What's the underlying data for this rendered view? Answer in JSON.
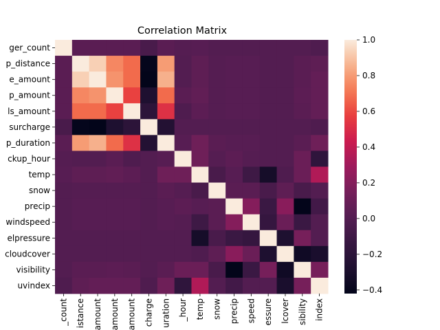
{
  "chart_data": {
    "type": "heatmap",
    "title": "Correlation Matrix",
    "labels": {
      "y": [
        "passenger_count",
        "trip_distance",
        "fare_amount",
        "tip_amount",
        "tolls_amount",
        "congestion_surcharge",
        "trip_duration",
        "pickup_hour",
        "temp",
        "snow",
        "precip",
        "windspeed",
        "sealevelpressure",
        "cloudcover",
        "visibility",
        "uvindex"
      ],
      "x": [
        "passenger_count",
        "trip_distance",
        "fare_amount",
        "tip_amount",
        "tolls_amount",
        "congestion_surcharge",
        "trip_duration",
        "pickup_hour",
        "temp",
        "snow",
        "precip",
        "windspeed",
        "sealevelpressure",
        "cloudcover",
        "visibility",
        "uvindex"
      ]
    },
    "y_tick_labels_shown": [
      "ger_count",
      "p_distance",
      "e_amount",
      "p_amount",
      "ls_amount",
      "surcharge",
      "p_duration",
      "ckup_hour",
      "temp",
      "snow",
      "precip",
      "windspeed",
      "elpressure",
      "cloudcover",
      "visibility",
      "uvindex"
    ],
    "x_tick_labels_shown": [
      "_count",
      "istance",
      "amount",
      "amount",
      "amount",
      "charge",
      "uration",
      "_hour",
      "temp",
      "snow",
      "precip",
      "speed",
      "essure",
      "lcover",
      "sibility",
      "index"
    ],
    "matrix": [
      [
        1.0,
        0.03,
        0.03,
        0.03,
        0.03,
        -0.05,
        0.03,
        0.01,
        0.02,
        0.0,
        0.0,
        0.0,
        0.0,
        0.0,
        0.0,
        -0.02
      ],
      [
        0.03,
        1.0,
        0.93,
        0.75,
        0.68,
        -0.41,
        0.8,
        0.0,
        0.05,
        0.01,
        0.02,
        0.02,
        0.0,
        0.0,
        0.03,
        0.05
      ],
      [
        0.03,
        0.93,
        1.0,
        0.78,
        0.68,
        -0.42,
        0.85,
        0.0,
        0.05,
        0.01,
        0.02,
        0.02,
        0.0,
        0.0,
        0.03,
        0.07
      ],
      [
        0.03,
        0.75,
        0.78,
        1.0,
        0.58,
        -0.28,
        0.68,
        0.03,
        0.06,
        0.01,
        0.02,
        0.02,
        0.0,
        0.0,
        0.04,
        0.07
      ],
      [
        0.03,
        0.68,
        0.68,
        0.58,
        1.0,
        -0.2,
        0.52,
        -0.02,
        0.04,
        0.01,
        0.02,
        0.02,
        0.0,
        0.0,
        0.03,
        0.07
      ],
      [
        -0.05,
        -0.41,
        -0.42,
        -0.28,
        -0.2,
        1.0,
        -0.25,
        0.0,
        0.0,
        0.0,
        0.0,
        0.0,
        0.0,
        0.0,
        0.0,
        -0.02
      ],
      [
        0.03,
        0.8,
        0.85,
        0.68,
        0.52,
        -0.25,
        1.0,
        0.02,
        0.12,
        0.03,
        0.02,
        0.02,
        0.0,
        0.0,
        0.03,
        0.12
      ],
      [
        0.01,
        0.0,
        0.0,
        0.03,
        -0.02,
        0.0,
        0.02,
        1.0,
        0.12,
        0.01,
        0.04,
        0.01,
        0.0,
        0.0,
        0.1,
        -0.18
      ],
      [
        0.02,
        0.05,
        0.05,
        0.06,
        0.04,
        0.0,
        0.12,
        0.12,
        1.0,
        -0.05,
        0.02,
        -0.1,
        -0.32,
        -0.02,
        0.1,
        0.35
      ],
      [
        0.0,
        0.01,
        0.01,
        0.01,
        0.01,
        0.0,
        0.03,
        0.01,
        -0.05,
        1.0,
        0.03,
        0.03,
        -0.05,
        0.05,
        -0.05,
        0.0
      ],
      [
        0.0,
        0.02,
        0.02,
        0.02,
        0.02,
        0.0,
        0.02,
        0.04,
        0.02,
        0.03,
        1.0,
        0.2,
        -0.12,
        0.22,
        -0.42,
        -0.08
      ],
      [
        0.0,
        0.02,
        0.02,
        0.02,
        0.02,
        0.0,
        0.02,
        0.01,
        -0.1,
        0.03,
        0.2,
        1.0,
        -0.15,
        0.1,
        -0.12,
        0.0
      ],
      [
        0.0,
        0.0,
        0.0,
        0.0,
        0.0,
        0.0,
        0.0,
        0.0,
        -0.32,
        -0.05,
        -0.12,
        -0.15,
        1.0,
        -0.28,
        0.15,
        0.0
      ],
      [
        0.0,
        0.0,
        0.0,
        0.0,
        0.0,
        0.0,
        0.0,
        0.0,
        -0.02,
        0.05,
        0.22,
        0.1,
        -0.28,
        1.0,
        -0.35,
        -0.3
      ],
      [
        0.0,
        0.03,
        0.03,
        0.04,
        0.03,
        0.0,
        0.03,
        0.1,
        0.1,
        -0.05,
        -0.42,
        -0.12,
        0.15,
        -0.35,
        1.0,
        0.15
      ],
      [
        -0.02,
        0.05,
        0.07,
        0.07,
        0.07,
        -0.02,
        0.12,
        -0.18,
        0.35,
        0.0,
        -0.08,
        0.0,
        0.0,
        -0.3,
        0.15,
        1.0
      ]
    ],
    "colorbar": {
      "vmin": -0.42,
      "vmax": 1.0,
      "ticks": [
        -0.4,
        -0.2,
        0.0,
        0.2,
        0.4,
        0.6,
        0.8,
        1.0
      ],
      "tick_labels": [
        "−0.4",
        "−0.2",
        "0.0",
        "0.2",
        "0.4",
        "0.6",
        "0.8",
        "1.0"
      ],
      "colormap": "rocket"
    }
  }
}
